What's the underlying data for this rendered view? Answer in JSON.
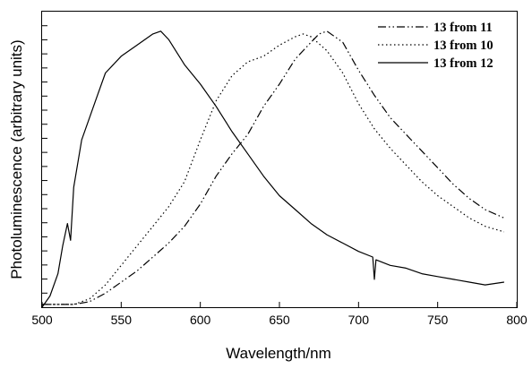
{
  "chart_data": {
    "type": "line",
    "title": "",
    "xlabel": "Wavelength/nm",
    "ylabel": "Photoluminescence (arbitrary units)",
    "xlim": [
      500,
      800
    ],
    "ylim": [
      0,
      1.06
    ],
    "x_ticks": [
      500,
      550,
      600,
      650,
      700,
      750,
      800
    ],
    "x_tick_labels": [
      "500",
      "550",
      "600",
      "650",
      "700",
      "750",
      "800"
    ],
    "y_tick_labels": "none",
    "grid": false,
    "legend_position": "top-right",
    "series": [
      {
        "name": "13 from 11",
        "line_style": "dash-dot-dot",
        "color": "#000000",
        "x": [
          500,
          520,
          530,
          540,
          550,
          560,
          570,
          580,
          590,
          600,
          610,
          620,
          630,
          640,
          650,
          660,
          670,
          675,
          680,
          690,
          700,
          710,
          720,
          730,
          740,
          750,
          760,
          770,
          780,
          792
        ],
        "y": [
          0.01,
          0.01,
          0.02,
          0.05,
          0.09,
          0.13,
          0.18,
          0.23,
          0.29,
          0.37,
          0.47,
          0.55,
          0.62,
          0.72,
          0.8,
          0.89,
          0.95,
          0.98,
          0.99,
          0.95,
          0.85,
          0.76,
          0.68,
          0.62,
          0.56,
          0.5,
          0.44,
          0.39,
          0.35,
          0.32
        ]
      },
      {
        "name": "13 from 10",
        "line_style": "dotted",
        "color": "#000000",
        "x": [
          500,
          520,
          530,
          540,
          550,
          560,
          570,
          580,
          590,
          600,
          610,
          620,
          630,
          640,
          650,
          660,
          665,
          670,
          680,
          690,
          700,
          710,
          720,
          730,
          740,
          750,
          760,
          770,
          780,
          792
        ],
        "y": [
          0.01,
          0.01,
          0.03,
          0.08,
          0.15,
          0.22,
          0.29,
          0.36,
          0.45,
          0.6,
          0.74,
          0.83,
          0.88,
          0.9,
          0.94,
          0.97,
          0.98,
          0.97,
          0.92,
          0.84,
          0.73,
          0.64,
          0.57,
          0.51,
          0.45,
          0.4,
          0.36,
          0.32,
          0.29,
          0.27
        ]
      },
      {
        "name": "13 from 12",
        "line_style": "solid",
        "color": "#000000",
        "x": [
          500,
          505,
          510,
          513,
          516,
          518,
          520,
          525,
          530,
          535,
          540,
          545,
          550,
          560,
          570,
          575,
          580,
          590,
          600,
          610,
          620,
          630,
          640,
          650,
          660,
          670,
          680,
          690,
          700,
          709,
          710,
          711,
          720,
          730,
          740,
          750,
          760,
          770,
          780,
          792
        ],
        "y": [
          0.0,
          0.04,
          0.12,
          0.22,
          0.3,
          0.24,
          0.43,
          0.6,
          0.68,
          0.76,
          0.84,
          0.87,
          0.9,
          0.94,
          0.98,
          0.99,
          0.96,
          0.87,
          0.8,
          0.72,
          0.63,
          0.55,
          0.47,
          0.4,
          0.35,
          0.3,
          0.26,
          0.23,
          0.2,
          0.18,
          0.1,
          0.17,
          0.15,
          0.14,
          0.12,
          0.11,
          0.1,
          0.09,
          0.08,
          0.09
        ]
      }
    ]
  }
}
